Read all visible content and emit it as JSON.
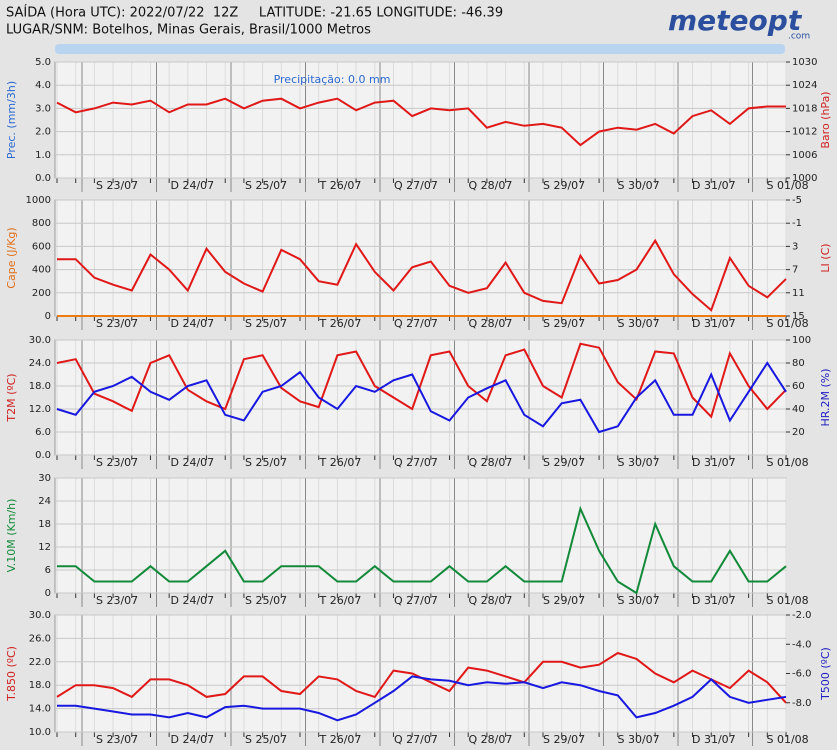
{
  "header": {
    "line1": "SAÍDA (Hora UTC): 2022/07/22  12Z     LATITUDE: -21.65 LONGITUDE: -46.39",
    "line2": "LUGAR/SNM: Botelhos, Minas Gerais, Brasil/1000 Metros"
  },
  "logo": {
    "name": "meteopt",
    "suffix": ".com"
  },
  "day_labels": [
    "S 23/07",
    "D 24/07",
    "S 25/07",
    "T 26/07",
    "Q 27/07",
    "Q 28/07",
    "S 29/07",
    "S 30/07",
    "D 31/07",
    "S 01/08"
  ],
  "chart_data": [
    {
      "type": "line",
      "y_label": "Prec. (mm/3h)",
      "y_label_color": "#2a6ad0",
      "y2_label": "Baro (hPa)",
      "y2_label_color": "#d02020",
      "annotation": "Precipitação: 0.0 mm",
      "ylim": [
        0,
        5
      ],
      "yticks": [
        {
          "value": 0,
          "label": "0.0"
        },
        {
          "value": 1,
          "label": "1.0"
        },
        {
          "value": 2,
          "label": "2.0"
        },
        {
          "value": 3,
          "label": "3.0"
        },
        {
          "value": 4,
          "label": "4.0"
        },
        {
          "value": 5,
          "label": "5.0"
        }
      ],
      "y2lim": [
        1000,
        1030
      ],
      "y2ticks": [
        1000,
        1006,
        1012,
        1018,
        1024,
        1030
      ],
      "series": [
        {
          "name": "Baro",
          "color": "#e01818",
          "axis": "y2",
          "values": [
            1019.5,
            1017,
            1018,
            1019.5,
            1019,
            1020,
            1017,
            1019,
            1019,
            1020.5,
            1018,
            1020,
            1020.5,
            1018,
            1019.5,
            1020.5,
            1017.5,
            1019.5,
            1020,
            1016,
            1018,
            1017.5,
            1018,
            1013,
            1014.5,
            1013.5,
            1014,
            1013,
            1008.5,
            1012,
            1013,
            1012.5,
            1014,
            1011.5,
            1016,
            1017.5,
            1014,
            1018,
            1018.5,
            1018.5
          ]
        }
      ]
    },
    {
      "type": "line",
      "y_label": "Cape (J/Kg)",
      "y_label_color": "#e07018",
      "y2_label": "LI (C)",
      "y2_label_color": "#d02020",
      "ylim": [
        0,
        1000
      ],
      "yticks": [
        0,
        200,
        400,
        600,
        800,
        1000
      ],
      "y2lim": [
        15,
        -5
      ],
      "y2ticks": [
        15,
        11,
        7,
        3,
        -1,
        -5
      ],
      "series": [
        {
          "name": "Cape",
          "color": "#f07a10",
          "values": [
            0,
            0,
            0,
            0,
            0,
            0,
            0,
            0,
            0,
            0,
            0,
            0,
            0,
            0,
            0,
            0,
            0,
            0,
            0,
            0,
            0,
            0,
            0,
            0,
            0,
            0,
            0,
            0,
            0,
            0,
            0,
            0,
            0,
            0,
            0,
            0,
            0,
            0,
            0,
            0
          ]
        },
        {
          "name": "LI",
          "color": "#e01818",
          "axis": "y2",
          "values": [
            5.2,
            5.2,
            8.4,
            9.6,
            10.6,
            4.4,
            7,
            10.6,
            3.4,
            7.4,
            9.4,
            10.8,
            3.6,
            5.2,
            9,
            9.6,
            2.6,
            7.4,
            10.6,
            6.6,
            5.6,
            9.8,
            11,
            10.2,
            5.8,
            11,
            12.4,
            12.8,
            4.6,
            9.4,
            8.8,
            7,
            2,
            7.8,
            11.2,
            14,
            5,
            9.8,
            11.8,
            8.6
          ]
        }
      ]
    },
    {
      "type": "line",
      "y_label": "T2M (ºC)",
      "y_label_color": "#d02020",
      "y2_label": "HR.2M (%)",
      "y2_label_color": "#2020c0",
      "ylim": [
        0,
        30
      ],
      "yticks": [
        {
          "value": 0,
          "label": "0.0"
        },
        {
          "value": 6,
          "label": "6.0"
        },
        {
          "value": 12,
          "label": "12.0"
        },
        {
          "value": 18,
          "label": "18.0"
        },
        {
          "value": 24,
          "label": "24.0"
        },
        {
          "value": 30,
          "label": "30.0"
        }
      ],
      "y2lim": [
        0,
        100
      ],
      "y2ticks": [
        20,
        40,
        60,
        80,
        100
      ],
      "series": [
        {
          "name": "T2M",
          "color": "#e01818",
          "values": [
            24,
            25,
            16,
            14,
            11.5,
            24,
            26,
            17,
            14,
            12,
            25,
            26,
            17.5,
            14,
            12.5,
            26,
            27,
            18,
            15,
            12,
            26,
            27,
            18,
            14,
            26,
            27.5,
            18,
            15,
            29,
            28,
            19,
            14.5,
            27,
            26.5,
            15,
            10,
            26.5,
            18,
            12,
            17
          ]
        },
        {
          "name": "HR.2M",
          "color": "#1818e0",
          "axis": "y2",
          "values": [
            40,
            35,
            55,
            60,
            68,
            55,
            48,
            60,
            65,
            35,
            30,
            55,
            60,
            72,
            50,
            40,
            60,
            55,
            65,
            70,
            38,
            30,
            50,
            58,
            65,
            35,
            25,
            45,
            48,
            20,
            25,
            50,
            65,
            35,
            35,
            70,
            30,
            55,
            80,
            55
          ]
        }
      ]
    },
    {
      "type": "line",
      "y_label": "V.10M (Km/h)",
      "y_label_color": "#158a3a",
      "ylim": [
        0,
        30
      ],
      "yticks": [
        0,
        6,
        12,
        18,
        24,
        30
      ],
      "series": [
        {
          "name": "V.10M",
          "color": "#128a3a",
          "values": [
            7,
            7,
            3,
            3,
            3,
            7,
            3,
            3,
            7,
            11,
            3,
            3,
            7,
            7,
            7,
            3,
            3,
            7,
            3,
            3,
            3,
            7,
            3,
            3,
            7,
            3,
            3,
            3,
            22,
            11,
            3,
            0,
            18,
            7,
            3,
            3,
            11,
            3,
            3,
            7
          ]
        }
      ]
    },
    {
      "type": "line",
      "y_label": "T.850 (ºC)",
      "y_label_color": "#d02020",
      "y2_label": "T500 (ºC)",
      "y2_label_color": "#2020c0",
      "ylim": [
        10,
        30
      ],
      "yticks": [
        {
          "value": 10,
          "label": "10.0"
        },
        {
          "value": 14,
          "label": "14.0"
        },
        {
          "value": 18,
          "label": "18.0"
        },
        {
          "value": 22,
          "label": "22.0"
        },
        {
          "value": 26,
          "label": "26.0"
        },
        {
          "value": 30,
          "label": "30.0"
        }
      ],
      "y2lim": [
        -10,
        -2
      ],
      "y2ticks": [
        {
          "value": -8,
          "label": "-8.0"
        },
        {
          "value": -6,
          "label": "-6.0"
        },
        {
          "value": -4,
          "label": "-4.0"
        },
        {
          "value": -2,
          "label": "-2.0"
        }
      ],
      "series": [
        {
          "name": "T.850",
          "color": "#e01818",
          "values": [
            16,
            18,
            18,
            17.5,
            16,
            19,
            19,
            18,
            16,
            16.5,
            19.5,
            19.5,
            17,
            16.5,
            19.5,
            19,
            17,
            16,
            20.5,
            20,
            18.5,
            17,
            21,
            20.5,
            19.5,
            18.5,
            22,
            22,
            21,
            21.5,
            23.5,
            22.5,
            20,
            18.5,
            20.5,
            19,
            17.5,
            20.5,
            18.5,
            15
          ]
        },
        {
          "name": "T500",
          "color": "#1818e0",
          "axis": "y2",
          "values": [
            -8.2,
            -8.2,
            -8.4,
            -8.6,
            -8.8,
            -8.8,
            -9,
            -8.7,
            -9,
            -8.3,
            -8.2,
            -8.4,
            -8.4,
            -8.4,
            -8.7,
            -9.2,
            -8.8,
            -8,
            -7.2,
            -6.2,
            -6.4,
            -6.5,
            -6.8,
            -6.6,
            -6.7,
            -6.6,
            -7,
            -6.6,
            -6.8,
            -7.2,
            -7.5,
            -9,
            -8.7,
            -8.2,
            -7.6,
            -6.4,
            -7.6,
            -8,
            -7.8,
            -7.6
          ]
        }
      ]
    }
  ]
}
